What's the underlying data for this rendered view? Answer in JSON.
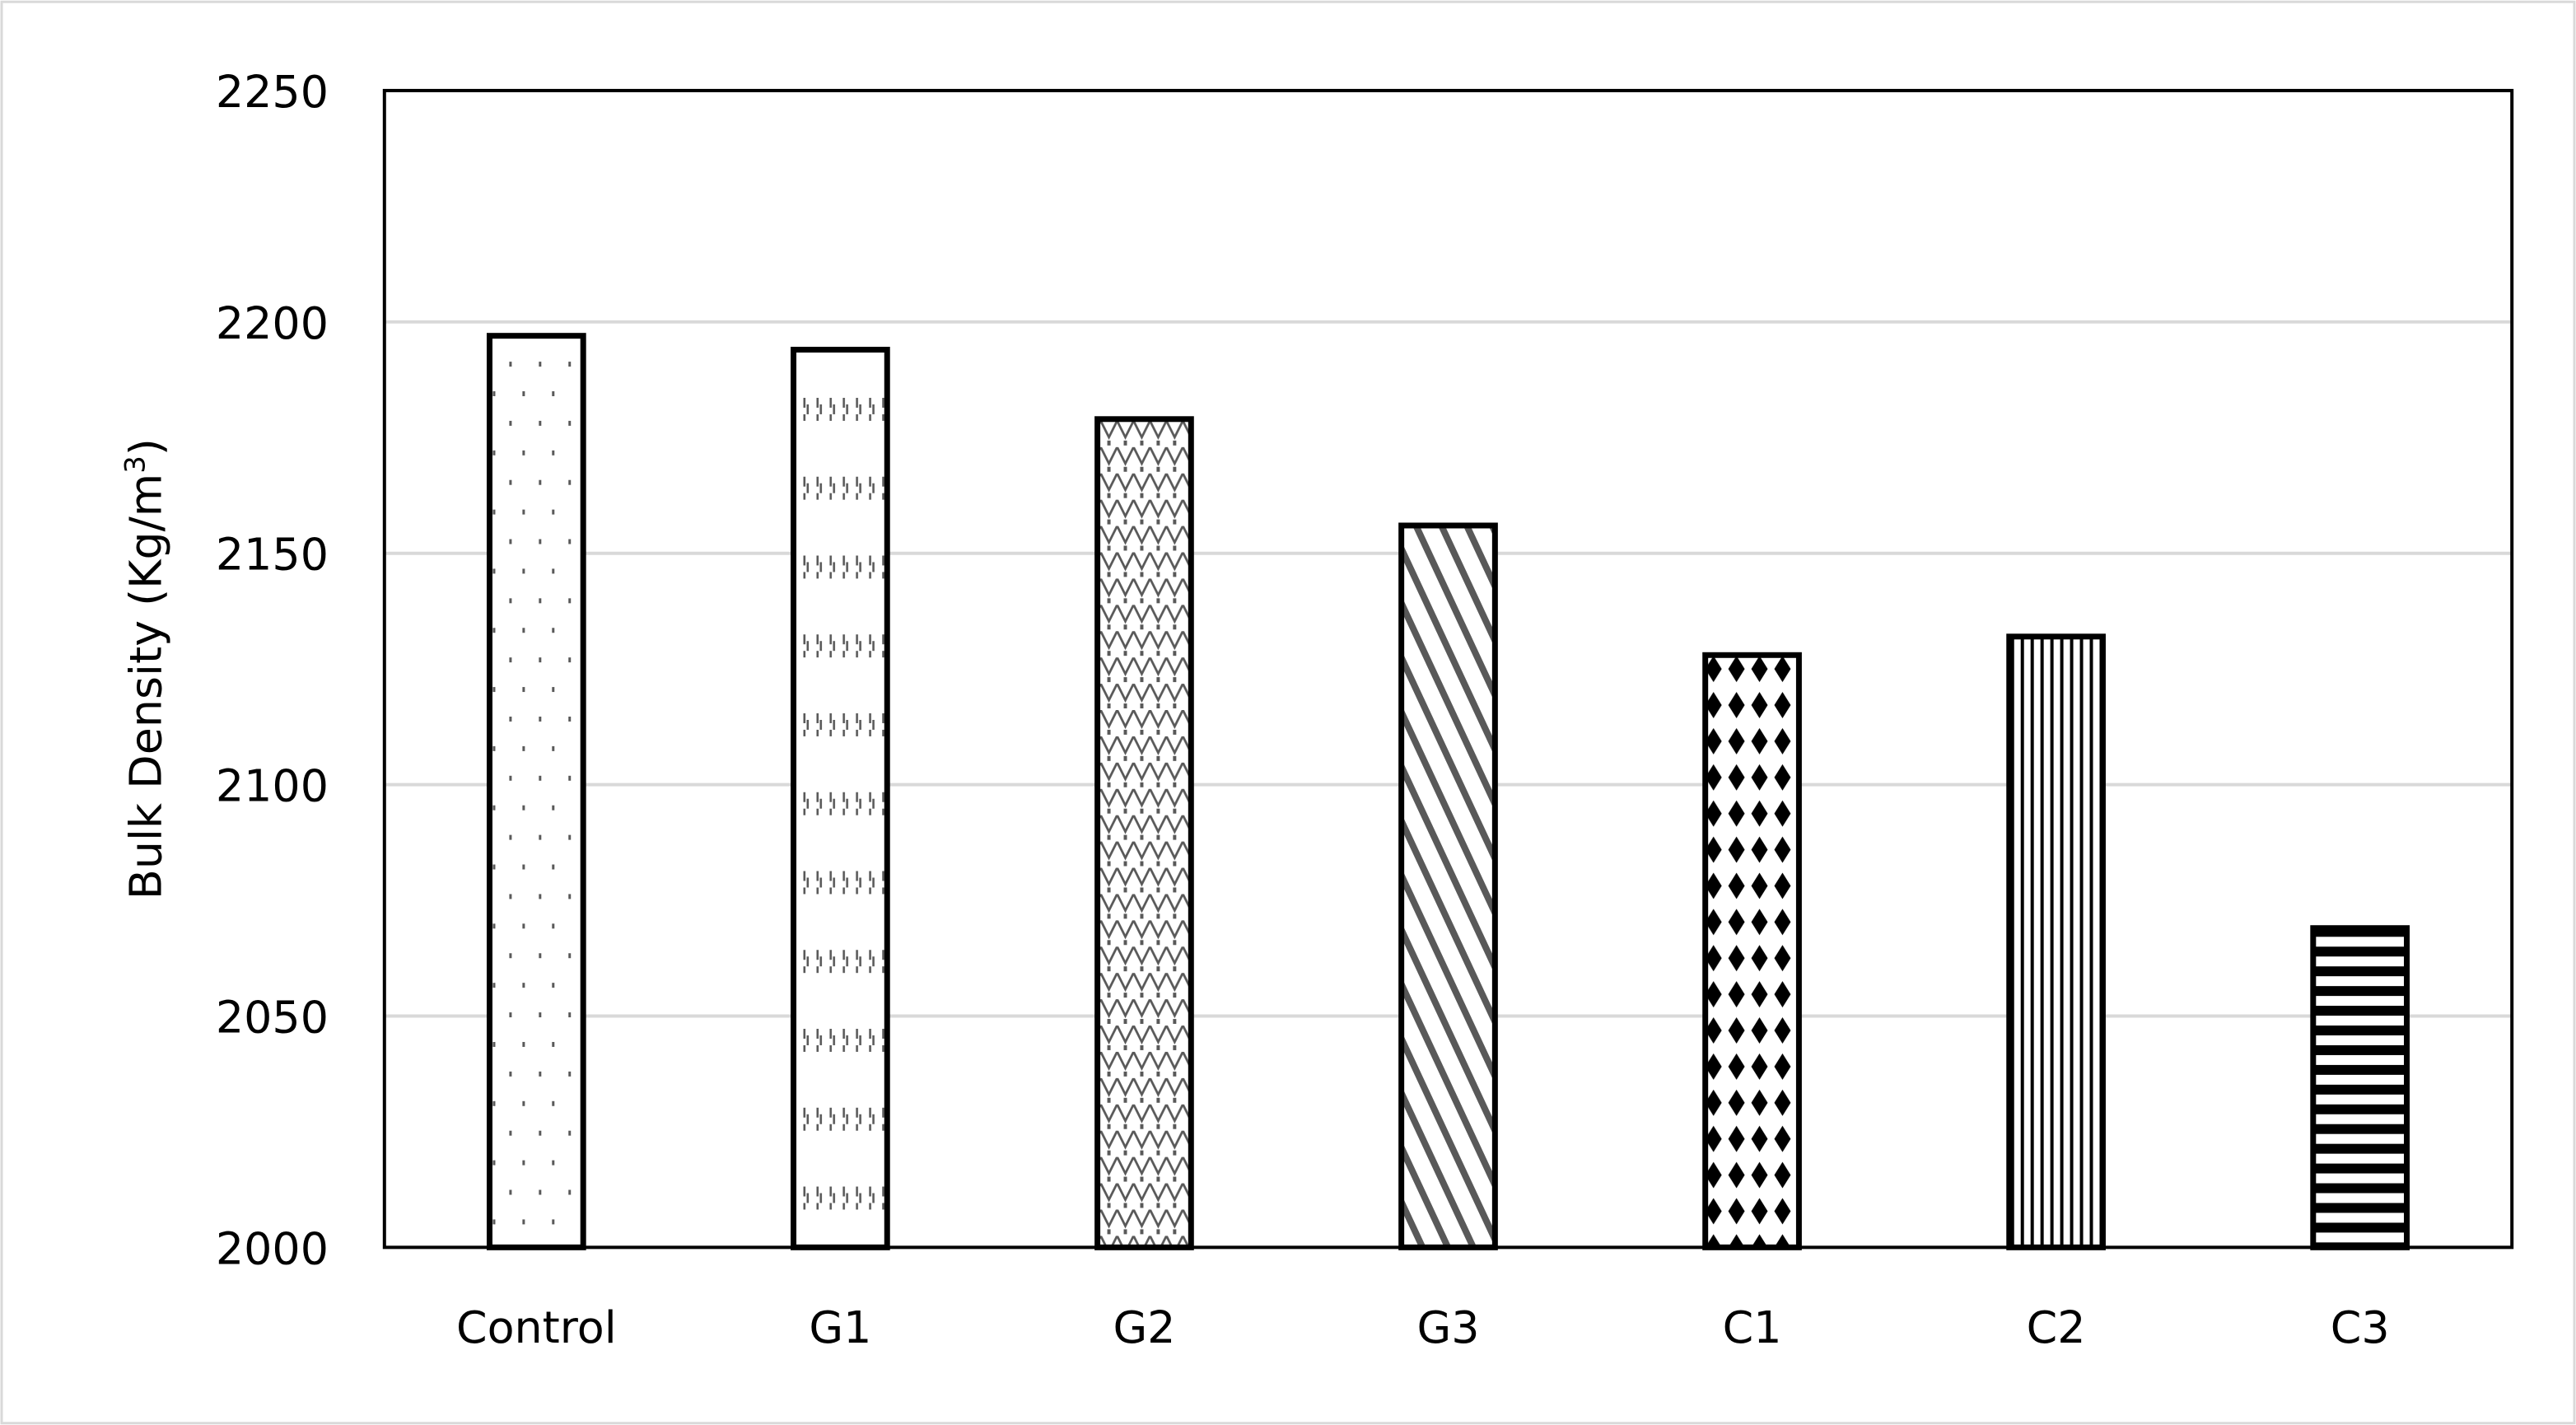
{
  "chart_data": {
    "type": "bar",
    "title": "",
    "xlabel": "",
    "ylabel": "Bulk Density (Kg/m³)",
    "ylabel_parts": {
      "main": "Bulk Density (Kg/m",
      "sup": "3",
      "end": ")"
    },
    "categories": [
      "Control",
      "G1",
      "G2",
      "G3",
      "C1",
      "C2",
      "C3"
    ],
    "values": [
      2197,
      2194,
      2179,
      2156,
      2128,
      2132,
      2069
    ],
    "patterns": [
      "dots",
      "small-dashes",
      "zigzag",
      "diagonal-stripes",
      "diamonds",
      "vertical-stripes",
      "horizontal-stripes"
    ],
    "ylim": [
      2000,
      2250
    ],
    "yticks": [
      2000,
      2050,
      2100,
      2150,
      2200,
      2250
    ],
    "grid": true,
    "legend": "none",
    "colors": {
      "bar_outline": "#000000",
      "pattern": "#595959",
      "grid": "#d9d9d9"
    }
  }
}
